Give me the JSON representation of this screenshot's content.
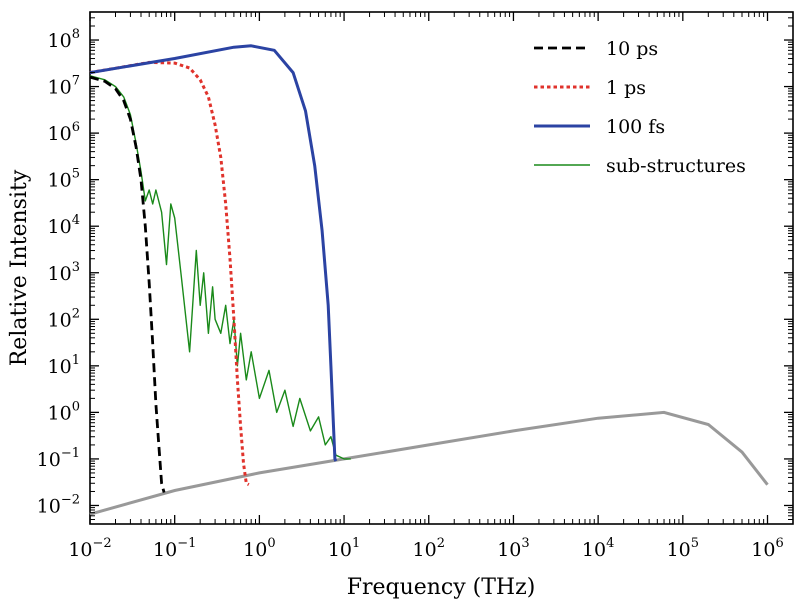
{
  "chart_data": {
    "type": "line",
    "title": "",
    "xlabel": "Frequency (THz)",
    "ylabel": "Relative Intensity",
    "xscale": "log",
    "yscale": "log",
    "xlim": [
      0.01,
      2000000
    ],
    "ylim": [
      0.004,
      400000000
    ],
    "x_ticks": [
      {
        "base": "10",
        "exp": "−2",
        "value": 0.01
      },
      {
        "base": "10",
        "exp": "−1",
        "value": 0.1
      },
      {
        "base": "10",
        "exp": "0",
        "value": 1
      },
      {
        "base": "10",
        "exp": "1",
        "value": 10
      },
      {
        "base": "10",
        "exp": "2",
        "value": 100
      },
      {
        "base": "10",
        "exp": "3",
        "value": 1000
      },
      {
        "base": "10",
        "exp": "4",
        "value": 10000
      },
      {
        "base": "10",
        "exp": "5",
        "value": 100000
      },
      {
        "base": "10",
        "exp": "6",
        "value": 1000000
      }
    ],
    "y_ticks": [
      {
        "base": "10",
        "exp": "−2",
        "value": 0.01
      },
      {
        "base": "10",
        "exp": "−1",
        "value": 0.1
      },
      {
        "base": "10",
        "exp": "0",
        "value": 1
      },
      {
        "base": "10",
        "exp": "1",
        "value": 10
      },
      {
        "base": "10",
        "exp": "2",
        "value": 100
      },
      {
        "base": "10",
        "exp": "3",
        "value": 1000
      },
      {
        "base": "10",
        "exp": "4",
        "value": 10000
      },
      {
        "base": "10",
        "exp": "5",
        "value": 100000
      },
      {
        "base": "10",
        "exp": "6",
        "value": 1000000
      },
      {
        "base": "10",
        "exp": "7",
        "value": 10000000
      },
      {
        "base": "10",
        "exp": "8",
        "value": 100000000
      }
    ],
    "grid": false,
    "legend_position": "top-right",
    "background_curve": {
      "color": "#999999",
      "x": [
        0.01,
        0.1,
        1,
        10,
        100,
        1000,
        10000,
        60000,
        200000,
        500000,
        1000000
      ],
      "y": [
        0.0065,
        0.021,
        0.05,
        0.1,
        0.2,
        0.4,
        0.75,
        1.0,
        0.55,
        0.14,
        0.028
      ]
    },
    "series": [
      {
        "name": "10 ps",
        "style": "dashed",
        "color": "#000000",
        "x": [
          0.01,
          0.015,
          0.02,
          0.025,
          0.03,
          0.035,
          0.04,
          0.045,
          0.05,
          0.055,
          0.06,
          0.065,
          0.07,
          0.075
        ],
        "y": [
          16000000,
          13000000,
          9000000,
          5000000,
          2000000,
          500000,
          100000,
          10000,
          600,
          30,
          1.5,
          0.2,
          0.03,
          0.019
        ]
      },
      {
        "name": "1 ps",
        "style": "dotted",
        "color": "#e0332c",
        "x": [
          0.01,
          0.05,
          0.1,
          0.15,
          0.2,
          0.25,
          0.3,
          0.35,
          0.4,
          0.45,
          0.5,
          0.55,
          0.6,
          0.65,
          0.7,
          0.75
        ],
        "y": [
          20000000,
          33000000,
          32000000,
          25000000,
          14000000,
          6000000,
          1500000,
          300000,
          30000,
          2000,
          100,
          5,
          0.5,
          0.08,
          0.03,
          0.028
        ]
      },
      {
        "name": "100 fs",
        "style": "solid",
        "color": "#2b43a3",
        "x": [
          0.01,
          0.1,
          0.5,
          0.8,
          1.5,
          2.5,
          3.5,
          4.5,
          5.5,
          6.5,
          7.0,
          7.5,
          7.8,
          8.0
        ],
        "y": [
          20000000,
          40000000,
          70000000,
          75000000,
          60000000,
          20000000,
          3000000,
          200000,
          8000,
          200,
          10,
          0.5,
          0.1,
          0.09
        ]
      },
      {
        "name": "sub-structures",
        "style": "solid",
        "color": "#1a8a1a",
        "x": [
          0.01,
          0.015,
          0.02,
          0.025,
          0.03,
          0.035,
          0.04,
          0.045,
          0.05,
          0.055,
          0.06,
          0.07,
          0.08,
          0.09,
          0.1,
          0.12,
          0.15,
          0.18,
          0.2,
          0.22,
          0.25,
          0.28,
          0.3,
          0.35,
          0.4,
          0.45,
          0.5,
          0.55,
          0.6,
          0.7,
          0.8,
          1.0,
          1.3,
          1.6,
          2.0,
          2.5,
          3.0,
          4.0,
          5.0,
          6.0,
          7.0,
          8.0,
          10.0,
          12.0
        ],
        "y": [
          17000000,
          14000000,
          10000000,
          6000000,
          2500000,
          600000,
          150000,
          35000,
          60000,
          30000,
          60000,
          20000,
          1500,
          30000,
          15000,
          800,
          20,
          3000,
          200,
          1000,
          50,
          500,
          100,
          50,
          200,
          30,
          100,
          10,
          50,
          5,
          20,
          2,
          8,
          1,
          3,
          0.5,
          2,
          0.4,
          0.8,
          0.2,
          0.3,
          0.12,
          0.1,
          0.1
        ]
      }
    ]
  }
}
